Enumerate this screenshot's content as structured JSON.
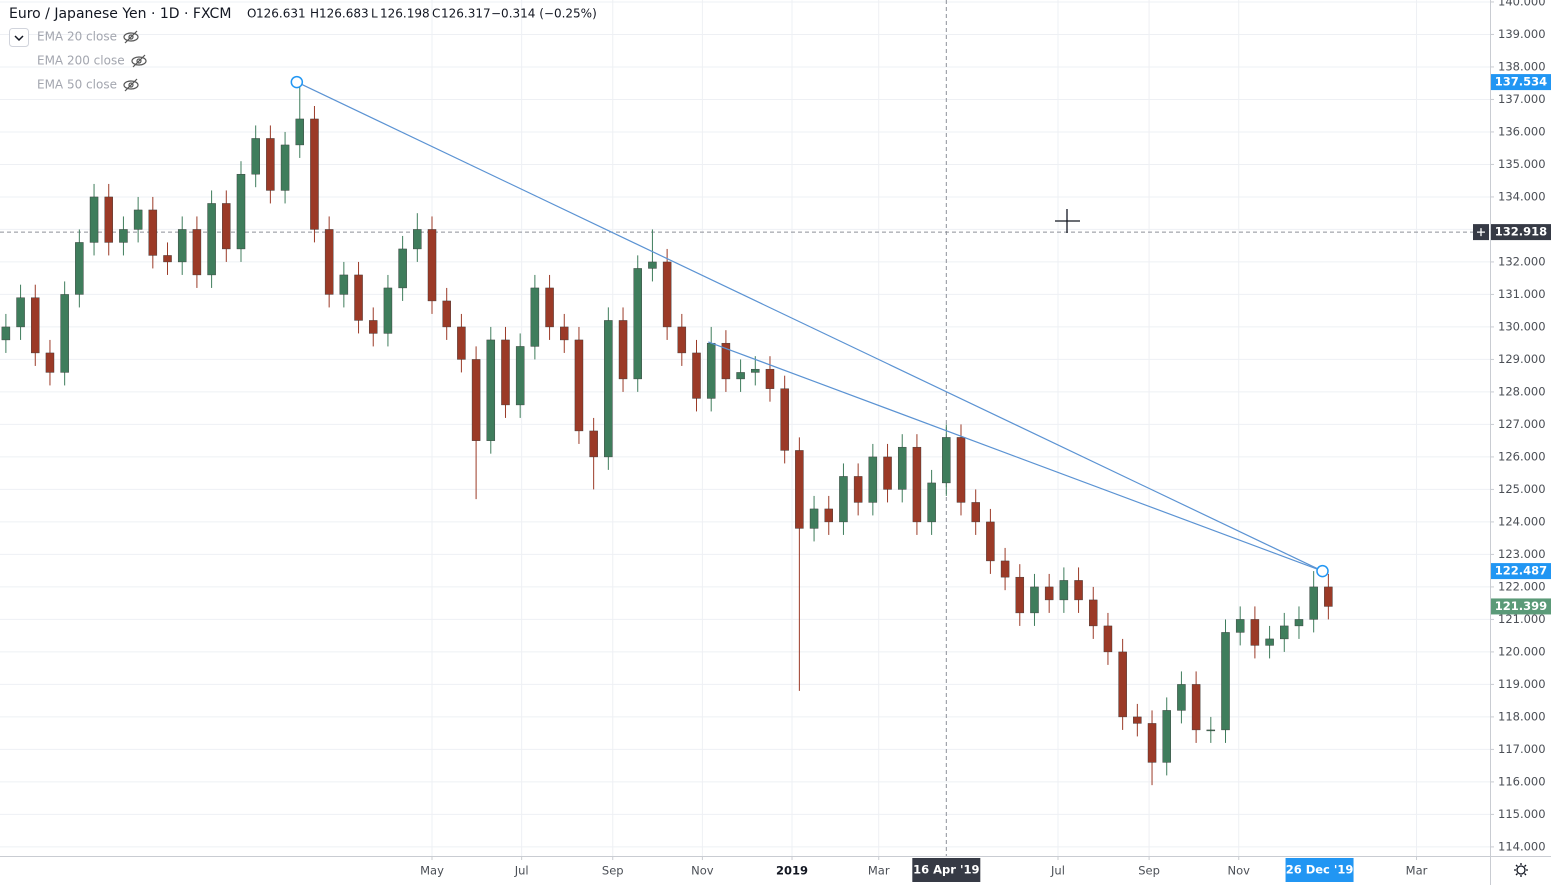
{
  "chart_data": {
    "type": "candlestick",
    "title": "Euro / Japanese Yen · 1D · FXCM",
    "quote": [
      {
        "label": "O",
        "value": 126.631
      },
      {
        "label": "H",
        "value": 126.683
      },
      {
        "label": "L",
        "value": 126.198
      },
      {
        "label": "C",
        "value": 126.317
      }
    ],
    "change": "−0.314 (−0.25%)",
    "indicators": [
      "EMA 20 close",
      "EMA 200 close",
      "EMA 50 close"
    ],
    "up_color": "#3f7d5c",
    "down_color": "#9b3a27",
    "x": [
      -535,
      -525,
      -515,
      -505,
      -495,
      -485,
      -475,
      -465,
      -455,
      -445,
      -435,
      -425,
      -415,
      -405,
      -395,
      -385,
      -375,
      -365,
      -355,
      -345,
      -335,
      -325,
      -315,
      -305,
      -295,
      -285,
      -275,
      -265,
      -255,
      -245,
      -235,
      -225,
      -215,
      -205,
      -195,
      -185,
      -175,
      -165,
      -155,
      -145,
      -135,
      -125,
      -115,
      -105,
      -95,
      -85,
      -75,
      -65,
      -55,
      -45,
      -35,
      -25,
      -15,
      -5,
      5,
      15,
      25,
      35,
      45,
      55,
      65,
      75,
      85,
      95,
      105,
      115,
      125,
      135,
      145,
      155,
      165,
      175,
      185,
      195,
      205,
      215,
      225,
      235,
      245,
      255,
      265,
      275,
      285,
      295,
      305,
      315,
      325,
      335,
      345,
      355,
      365
    ],
    "open": [
      129.6,
      130.0,
      130.9,
      129.2,
      128.6,
      131.0,
      132.6,
      134.0,
      132.6,
      133.0,
      133.6,
      132.2,
      132.0,
      133.0,
      131.6,
      133.8,
      132.4,
      134.7,
      135.8,
      134.2,
      135.6,
      136.4,
      133.0,
      131.0,
      131.6,
      130.2,
      129.8,
      131.2,
      132.4,
      133.0,
      130.8,
      130.0,
      129.0,
      126.5,
      129.6,
      127.6,
      129.4,
      131.2,
      130.0,
      129.6,
      126.8,
      126.0,
      130.2,
      128.4,
      131.8,
      132.0,
      130.0,
      129.2,
      127.8,
      129.5,
      128.4,
      128.6,
      128.7,
      128.1,
      126.2,
      123.8,
      124.4,
      124.0,
      125.4,
      124.6,
      126.0,
      125.0,
      126.3,
      124.0,
      125.2,
      126.6,
      124.6,
      124.0,
      122.8,
      122.3,
      121.2,
      122.0,
      121.6,
      122.2,
      121.6,
      120.8,
      120.0,
      118.0,
      117.8,
      116.6,
      118.2,
      119.0,
      117.6,
      117.6,
      120.6,
      121.0,
      120.2,
      120.4,
      120.8,
      121.0,
      122.0
    ],
    "high": [
      130.4,
      131.3,
      131.3,
      129.6,
      131.4,
      133.0,
      134.4,
      134.4,
      133.4,
      134.0,
      134.0,
      132.6,
      133.4,
      133.4,
      134.2,
      134.2,
      135.1,
      136.2,
      136.2,
      136.0,
      137.534,
      136.8,
      133.4,
      132.0,
      132.0,
      130.6,
      131.6,
      132.8,
      133.5,
      133.4,
      131.2,
      130.4,
      129.4,
      130.0,
      130.0,
      129.8,
      131.6,
      131.6,
      130.4,
      130.0,
      127.2,
      130.6,
      130.6,
      132.2,
      133.0,
      132.4,
      130.4,
      129.6,
      130.0,
      129.9,
      129.0,
      129.1,
      129.1,
      128.5,
      126.6,
      124.8,
      124.8,
      125.8,
      125.8,
      126.4,
      126.4,
      126.7,
      126.7,
      125.6,
      127.0,
      127.0,
      125.0,
      124.4,
      123.2,
      122.7,
      122.4,
      122.4,
      122.6,
      122.6,
      122.0,
      121.2,
      120.4,
      118.4,
      118.2,
      118.6,
      119.4,
      119.4,
      118.0,
      121.0,
      121.4,
      121.4,
      120.8,
      121.2,
      121.4,
      122.487,
      122.4
    ],
    "low": [
      129.2,
      129.6,
      128.8,
      128.2,
      128.2,
      130.6,
      132.2,
      132.2,
      132.2,
      132.6,
      131.8,
      131.6,
      131.6,
      131.2,
      131.2,
      132.0,
      132.0,
      134.3,
      133.8,
      133.8,
      135.2,
      132.6,
      130.6,
      130.6,
      129.8,
      129.4,
      129.4,
      130.8,
      132.0,
      130.4,
      129.6,
      128.6,
      124.7,
      126.1,
      127.2,
      127.2,
      129.0,
      129.6,
      129.2,
      126.4,
      125.0,
      125.6,
      128.0,
      128.0,
      131.4,
      129.6,
      128.8,
      127.4,
      127.4,
      128.0,
      128.0,
      128.2,
      127.7,
      125.8,
      118.8,
      123.4,
      123.6,
      123.6,
      124.2,
      124.2,
      124.6,
      124.6,
      123.6,
      123.6,
      124.8,
      124.2,
      123.6,
      122.4,
      121.9,
      120.8,
      120.8,
      121.2,
      121.2,
      121.2,
      120.4,
      119.6,
      117.6,
      117.4,
      115.9,
      116.2,
      117.8,
      117.2,
      117.2,
      117.2,
      120.2,
      119.8,
      119.8,
      120.0,
      120.4,
      120.6,
      121.0
    ],
    "close": [
      130.0,
      130.9,
      129.2,
      128.6,
      131.0,
      132.6,
      134.0,
      132.6,
      133.0,
      133.6,
      132.2,
      132.0,
      133.0,
      131.6,
      133.8,
      132.4,
      134.7,
      135.8,
      134.2,
      135.6,
      136.4,
      133.0,
      131.0,
      131.6,
      130.2,
      129.8,
      131.2,
      132.4,
      133.0,
      130.8,
      130.0,
      129.0,
      126.5,
      129.6,
      127.6,
      129.4,
      131.2,
      130.0,
      129.6,
      126.8,
      126.0,
      130.2,
      128.4,
      131.8,
      132.0,
      130.0,
      129.2,
      127.8,
      129.5,
      128.4,
      128.6,
      128.7,
      128.1,
      126.2,
      123.8,
      124.4,
      124.0,
      125.4,
      124.6,
      126.0,
      125.0,
      126.3,
      124.0,
      125.2,
      126.6,
      124.6,
      124.0,
      122.8,
      122.3,
      121.2,
      122.0,
      121.6,
      122.2,
      121.6,
      120.8,
      120.0,
      118.0,
      117.8,
      116.6,
      118.2,
      119.0,
      117.6,
      117.6,
      120.6,
      121.0,
      120.2,
      120.4,
      120.8,
      121.0,
      122.0,
      121.399
    ],
    "xlim": [
      -539,
      475
    ],
    "xticks": [
      {
        "value": -245,
        "label": "May"
      },
      {
        "value": -184,
        "label": "Jul"
      },
      {
        "value": -122,
        "label": "Sep"
      },
      {
        "value": -61,
        "label": "Nov"
      },
      {
        "value": 0,
        "label": "2019"
      },
      {
        "value": 59,
        "label": "Mar"
      },
      {
        "value": 181,
        "label": "Jul"
      },
      {
        "value": 243,
        "label": "Sep"
      },
      {
        "value": 304,
        "label": "Nov"
      },
      {
        "value": 425,
        "label": "Mar"
      }
    ],
    "ylim": [
      113.72,
      140.06
    ],
    "yticks": [
      {
        "value": 114,
        "label": "114.000"
      },
      {
        "value": 115,
        "label": "115.000"
      },
      {
        "value": 116,
        "label": "116.000"
      },
      {
        "value": 117,
        "label": "117.000"
      },
      {
        "value": 118,
        "label": "118.000"
      },
      {
        "value": 119,
        "label": "119.000"
      },
      {
        "value": 120,
        "label": "120.000"
      },
      {
        "value": 121,
        "label": "121.000"
      },
      {
        "value": 122,
        "label": "122.000"
      },
      {
        "value": 123,
        "label": "123.000"
      },
      {
        "value": 124,
        "label": "124.000"
      },
      {
        "value": 125,
        "label": "125.000"
      },
      {
        "value": 126,
        "label": "126.000"
      },
      {
        "value": 127,
        "label": "127.000"
      },
      {
        "value": 128,
        "label": "128.000"
      },
      {
        "value": 129,
        "label": "129.000"
      },
      {
        "value": 130,
        "label": "130.000"
      },
      {
        "value": 131,
        "label": "131.000"
      },
      {
        "value": 132,
        "label": "132.000"
      },
      {
        "value": 133,
        "label": "133.000"
      },
      {
        "value": 134,
        "label": "134.000"
      },
      {
        "value": 135,
        "label": "135.000"
      },
      {
        "value": 136,
        "label": "136.000"
      },
      {
        "value": 137,
        "label": "137.000"
      },
      {
        "value": 138,
        "label": "138.000"
      },
      {
        "value": 139,
        "label": "139.000"
      },
      {
        "value": 140,
        "label": "140.000"
      }
    ],
    "grid": true,
    "trendlines": [
      {
        "x": [
          -337,
          361
        ],
        "y": [
          137.534,
          122.487
        ],
        "color": "#5b93d3"
      },
      {
        "x": [
          -57,
          361
        ],
        "y": [
          129.54,
          122.487
        ],
        "color": "#5b93d3"
      }
    ],
    "price_labels": [
      {
        "value": 137.534,
        "color": "#2196f3"
      },
      {
        "value": 132.918,
        "color": "#363a45"
      },
      {
        "value": 122.487,
        "color": "#2196f3"
      },
      {
        "value": 121.399,
        "color": "#5b9a78"
      }
    ],
    "crosshair": {
      "x": 105,
      "x_label": "16 Apr '19",
      "y": 132.918
    },
    "date_marker": {
      "x": 359,
      "label": "26 Dec '19"
    }
  }
}
